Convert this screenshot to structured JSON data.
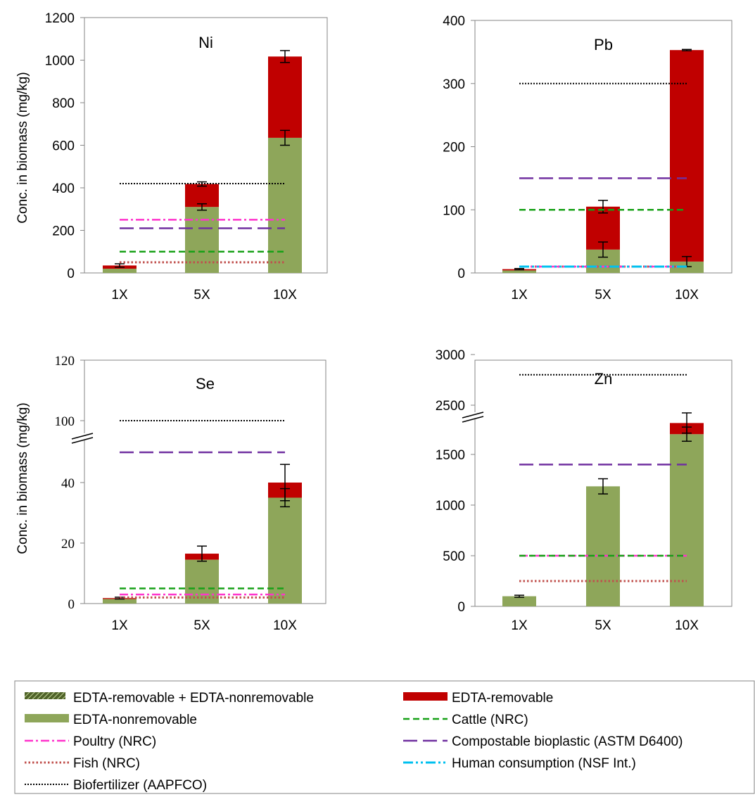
{
  "y_axis_label": "Conc. in biomass (mg/kg)",
  "colors": {
    "removable": "#c00000",
    "nonremovable": "#8ea65a",
    "cattle": "#16a016",
    "poultry": "#ff33cc",
    "bioplastic": "#7030a0",
    "fish": "#c0504d",
    "human": "#00c0ef",
    "biofertilizer": "#000000",
    "axis": "#868686"
  },
  "chart_data": [
    {
      "type": "bar",
      "stacked": true,
      "title": "Ni",
      "categories": [
        "1X",
        "5X",
        "10X"
      ],
      "ylim": [
        0,
        1200
      ],
      "yticks": [
        "0",
        "200",
        "400",
        "600",
        "800",
        "1000",
        "1200"
      ],
      "axis_break": false,
      "series": [
        {
          "name": "EDTA-nonremovable",
          "values": [
            20,
            310,
            635
          ],
          "errors": [
            0,
            15,
            35
          ]
        },
        {
          "name": "EDTA-removable",
          "values": [
            15,
            108,
            382
          ],
          "errors": [
            8,
            10,
            28
          ]
        }
      ],
      "thresholds": [
        {
          "name": "Biofertilizer (AAPFCO)",
          "value": 420
        },
        {
          "name": "Poultry (NRC)",
          "value": 250
        },
        {
          "name": "Compostable bioplastic (ASTM D6400)",
          "value": 210
        },
        {
          "name": "Cattle (NRC)",
          "value": 100
        },
        {
          "name": "Fish (NRC)",
          "value": 50
        }
      ]
    },
    {
      "type": "bar",
      "stacked": true,
      "title": "Pb",
      "categories": [
        "1X",
        "5X",
        "10X"
      ],
      "ylim": [
        0,
        400
      ],
      "yticks": [
        "0",
        "100",
        "200",
        "300",
        "400"
      ],
      "axis_break": false,
      "series": [
        {
          "name": "EDTA-nonremovable",
          "values": [
            4,
            37,
            18
          ],
          "errors": [
            0,
            12,
            8
          ]
        },
        {
          "name": "EDTA-removable",
          "values": [
            2,
            68,
            335
          ],
          "errors": [
            1,
            10,
            1
          ]
        }
      ],
      "thresholds": [
        {
          "name": "Biofertilizer (AAPFCO)",
          "value": 300
        },
        {
          "name": "Compostable bioplastic (ASTM D6400)",
          "value": 150
        },
        {
          "name": "Cattle (NRC)",
          "value": 100
        },
        {
          "name": "Fish (NRC)",
          "value": 10
        },
        {
          "name": "Poultry (NRC)",
          "value": 10
        },
        {
          "name": "Human consumption (NSF Int.)",
          "value": 10
        }
      ]
    },
    {
      "type": "bar",
      "stacked": true,
      "title": "Se",
      "categories": [
        "1X",
        "5X",
        "10X"
      ],
      "ylim": [
        0,
        120
      ],
      "yticks": [
        "0",
        "20",
        "40",
        "100",
        "120"
      ],
      "axis_break": true,
      "series": [
        {
          "name": "EDTA-nonremovable",
          "values": [
            1.5,
            14.5,
            35
          ],
          "errors": [
            0,
            0,
            3
          ]
        },
        {
          "name": "EDTA-removable",
          "values": [
            0.3,
            2,
            5
          ],
          "errors": [
            0.3,
            2.5,
            6
          ]
        }
      ],
      "thresholds": [
        {
          "name": "Biofertilizer (AAPFCO)",
          "value": 100
        },
        {
          "name": "Compostable bioplastic (ASTM D6400)",
          "value": 50
        },
        {
          "name": "Cattle (NRC)",
          "value": 5
        },
        {
          "name": "Poultry (NRC)",
          "value": 3
        },
        {
          "name": "Fish (NRC)",
          "value": 2
        }
      ]
    },
    {
      "type": "bar",
      "stacked": true,
      "title": "Zn",
      "categories": [
        "1X",
        "5X",
        "10X"
      ],
      "ylim": [
        0,
        3000
      ],
      "yticks": [
        "0",
        "500",
        "1000",
        "1500",
        "2500",
        "3000"
      ],
      "axis_break": true,
      "series": [
        {
          "name": "EDTA-nonremovable",
          "values": [
            100,
            1185,
            1700
          ],
          "errors": [
            10,
            75,
            70
          ]
        },
        {
          "name": "EDTA-removable",
          "values": [
            0,
            0,
            110
          ],
          "errors": [
            0,
            0,
            100
          ]
        }
      ],
      "thresholds": [
        {
          "name": "Biofertilizer (AAPFCO)",
          "value": 2800
        },
        {
          "name": "Compostable bioplastic (ASTM D6400)",
          "value": 1400
        },
        {
          "name": "Poultry (NRC)",
          "value": 500
        },
        {
          "name": "Cattle (NRC)",
          "value": 500
        },
        {
          "name": "Fish (NRC)",
          "value": 250
        }
      ]
    }
  ],
  "legend": [
    {
      "label": "EDTA-removable + EDTA-nonremovable",
      "kind": "hatch"
    },
    {
      "label": "EDTA-removable",
      "kind": "fill-removable"
    },
    {
      "label": "EDTA-nonremovable",
      "kind": "fill-nonremovable"
    },
    {
      "label": "Cattle (NRC)",
      "kind": "cattle"
    },
    {
      "label": "Poultry (NRC)",
      "kind": "poultry"
    },
    {
      "label": "Compostable bioplastic (ASTM D6400)",
      "kind": "bioplastic"
    },
    {
      "label": "Fish (NRC)",
      "kind": "fish"
    },
    {
      "label": "Human consumption (NSF Int.)",
      "kind": "human"
    },
    {
      "label": "Biofertilizer (AAPFCO)",
      "kind": "biofertilizer"
    }
  ]
}
